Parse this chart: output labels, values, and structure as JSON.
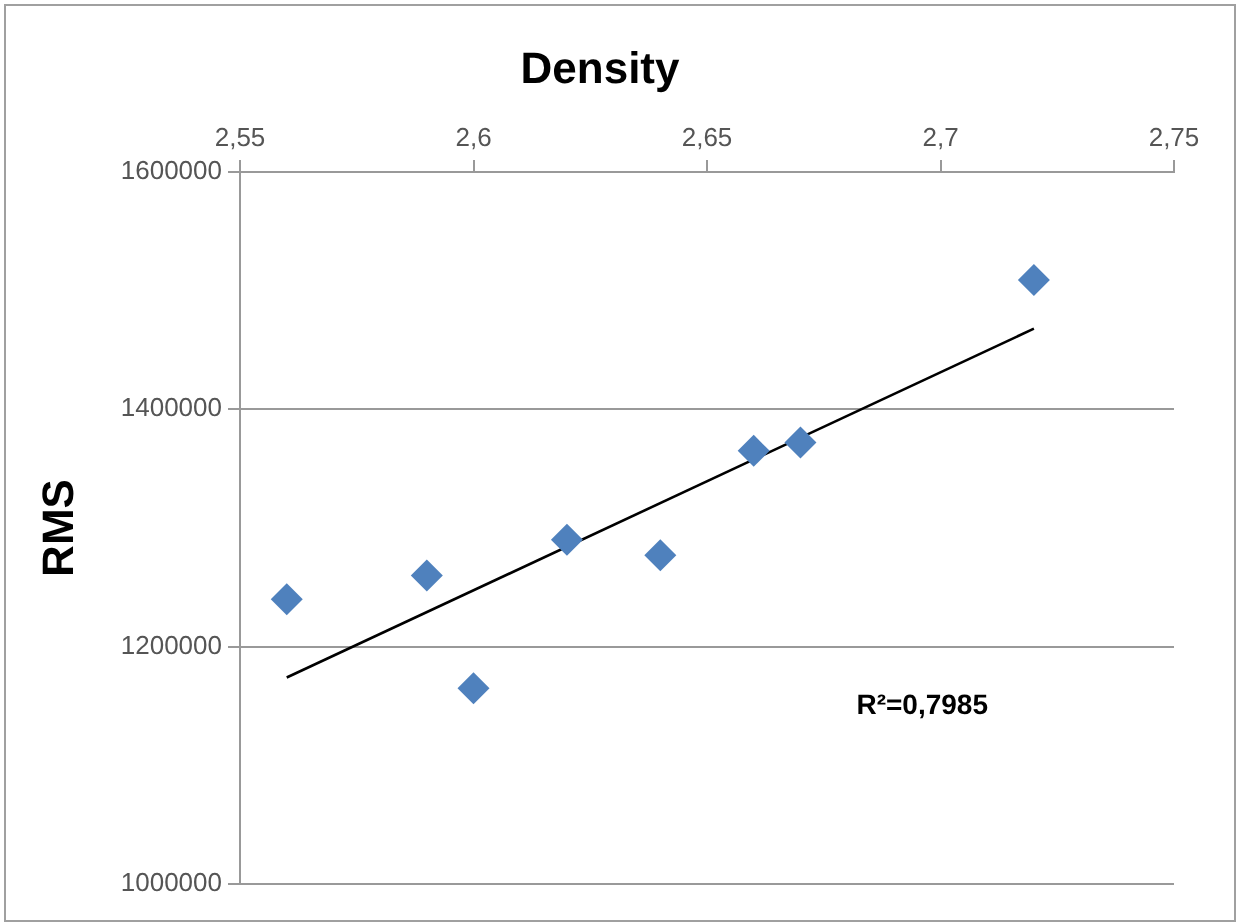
{
  "chart_data": {
    "type": "scatter",
    "title": "Density",
    "ylabel": "RMS",
    "xlim": [
      2.55,
      2.75
    ],
    "xticks": [
      {
        "value": 2.55,
        "label": "2,55"
      },
      {
        "value": 2.6,
        "label": "2,6"
      },
      {
        "value": 2.65,
        "label": "2,65"
      },
      {
        "value": 2.7,
        "label": "2,7"
      },
      {
        "value": 2.75,
        "label": "2,75"
      }
    ],
    "ylim": [
      1000000,
      1600000
    ],
    "yticks": [
      1000000,
      1200000,
      1400000,
      1600000
    ],
    "grid": "y",
    "legend": false,
    "marker": "diamond",
    "series": [
      {
        "color": "#4f81bd",
        "x": [
          2.56,
          2.59,
          2.6,
          2.62,
          2.64,
          2.66,
          2.67,
          2.72
        ],
        "values": [
          1240000,
          1260000,
          1165000,
          1290000,
          1277000,
          1365000,
          1372000,
          1509000
        ]
      },
      {
        "type": "line",
        "color": "#000000",
        "marker": "none",
        "x": [
          2.56,
          2.72
        ],
        "values": [
          1174000,
          1468000
        ]
      }
    ],
    "annotations": [
      "R²=0,7985"
    ]
  }
}
